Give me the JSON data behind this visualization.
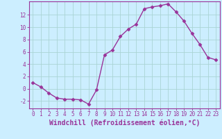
{
  "x": [
    0,
    1,
    2,
    3,
    4,
    5,
    6,
    7,
    8,
    9,
    10,
    11,
    12,
    13,
    14,
    15,
    16,
    17,
    18,
    19,
    20,
    21,
    22,
    23
  ],
  "y": [
    1.0,
    0.3,
    -0.7,
    -1.5,
    -1.7,
    -1.7,
    -1.8,
    -2.5,
    -0.2,
    5.5,
    6.3,
    8.5,
    9.7,
    10.5,
    13.0,
    13.3,
    13.5,
    13.8,
    12.5,
    11.0,
    9.0,
    7.2,
    5.1,
    4.7
  ],
  "line_color": "#993399",
  "marker": "D",
  "markersize": 2.5,
  "linewidth": 1.0,
  "bg_color": "#cceeff",
  "grid_color": "#aad4d4",
  "xlim": [
    -0.5,
    23.5
  ],
  "ylim": [
    -3.2,
    14.2
  ],
  "yticks": [
    -2,
    0,
    2,
    4,
    6,
    8,
    10,
    12
  ],
  "xticks": [
    0,
    1,
    2,
    3,
    4,
    5,
    6,
    7,
    8,
    9,
    10,
    11,
    12,
    13,
    14,
    15,
    16,
    17,
    18,
    19,
    20,
    21,
    22,
    23
  ],
  "tick_color": "#993399",
  "tick_fontsize": 5.5,
  "xlabel": "Windchill (Refroidissement éolien,°C)",
  "xlabel_fontsize": 7.0,
  "spine_color": "#993399"
}
